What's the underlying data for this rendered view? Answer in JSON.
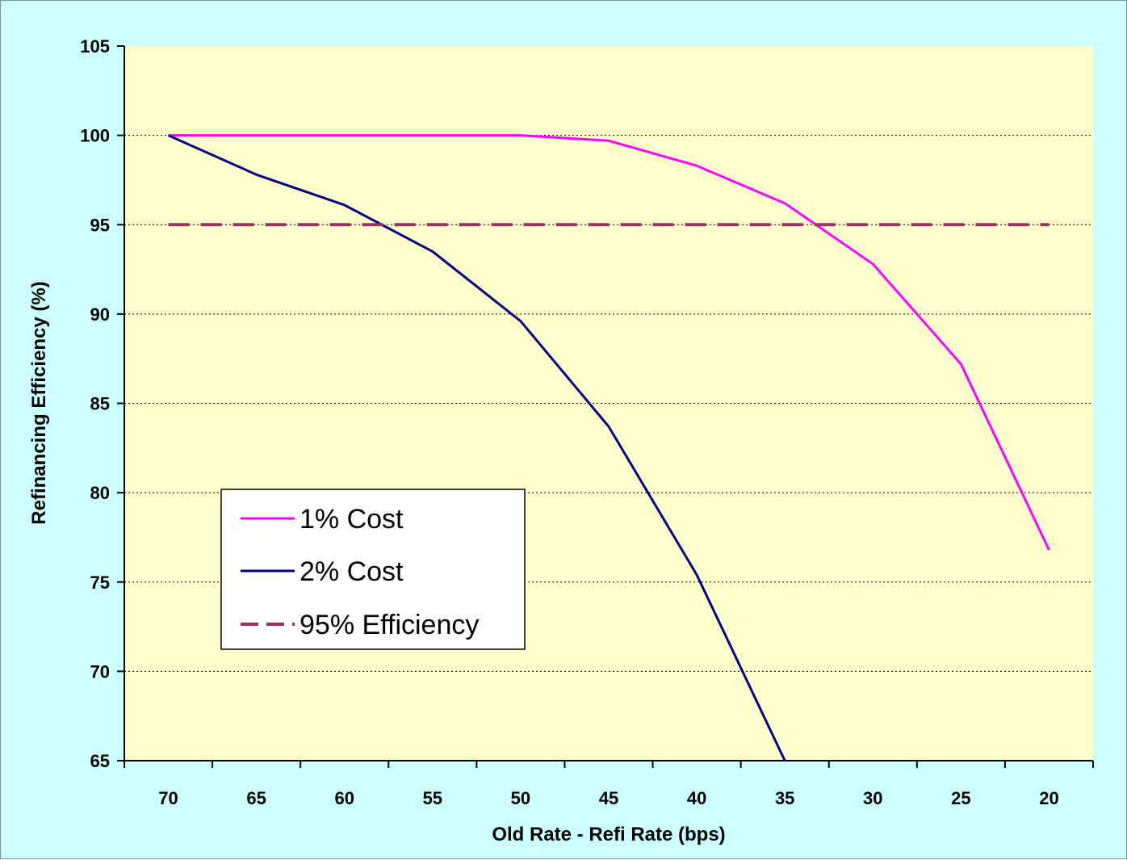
{
  "chart_data": {
    "type": "line",
    "xlabel": "Old Rate - Refi Rate (bps)",
    "ylabel": "Refinancing Efficiency (%)",
    "x_categories": [
      70,
      65,
      60,
      55,
      50,
      45,
      40,
      35,
      30,
      25,
      20
    ],
    "ylim": [
      65,
      105
    ],
    "yticks": [
      65,
      70,
      75,
      80,
      85,
      90,
      95,
      100,
      105
    ],
    "grid": "horizontal dotted",
    "legend_position": "lower-left",
    "series": [
      {
        "name": "1% Cost",
        "color": "#ff00ff",
        "style": "solid",
        "values": [
          100,
          100,
          100,
          100,
          100,
          99.7,
          98.3,
          96.2,
          92.8,
          87.2,
          76.8
        ]
      },
      {
        "name": "2% Cost",
        "color": "#000080",
        "style": "solid",
        "values": [
          100,
          97.8,
          96.1,
          93.5,
          89.6,
          83.7,
          75.4,
          65.0
        ]
      },
      {
        "name": "95% Efficiency",
        "color": "#993366",
        "style": "dashed",
        "values": [
          95,
          95,
          95,
          95,
          95,
          95,
          95,
          95,
          95,
          95,
          95
        ]
      }
    ]
  }
}
